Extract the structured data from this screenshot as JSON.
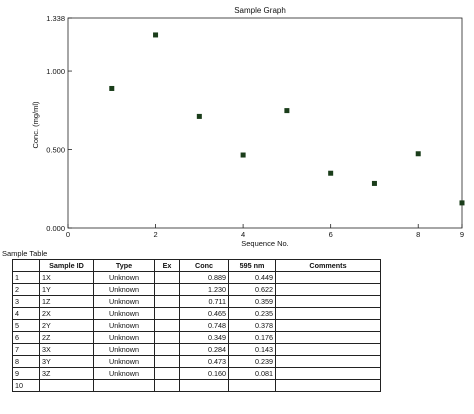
{
  "chart_data": {
    "type": "scatter",
    "title": "Sample Graph",
    "xlabel": "Sequence No.",
    "ylabel": "Conc. (mg/ml)",
    "xlim": [
      0,
      9
    ],
    "ylim": [
      0,
      1.338
    ],
    "x_ticks": [
      "0",
      "2",
      "4",
      "6",
      "8",
      "9"
    ],
    "x_tick_values": [
      0,
      2,
      4,
      6,
      8,
      9
    ],
    "y_ticks": [
      "0.000",
      "0.500",
      "1.000",
      "1.338"
    ],
    "y_tick_values": [
      0,
      0.5,
      1.0,
      1.338
    ],
    "series": [
      {
        "x": [
          1,
          2,
          3,
          4,
          5,
          6,
          7,
          8,
          9
        ],
        "y": [
          0.889,
          1.23,
          0.711,
          0.465,
          0.748,
          0.349,
          0.284,
          0.473,
          0.16
        ]
      }
    ],
    "marker_color": "#1a3d1a",
    "grid": false
  },
  "table": {
    "caption": "Sample Table",
    "headers": [
      "",
      "Sample ID",
      "Type",
      "Ex",
      "Conc",
      "595 nm",
      "Comments"
    ],
    "rows": [
      [
        "1",
        "1X",
        "Unknown",
        "",
        "0.889",
        "0.449",
        ""
      ],
      [
        "2",
        "1Y",
        "Unknown",
        "",
        "1.230",
        "0.622",
        ""
      ],
      [
        "3",
        "1Z",
        "Unknown",
        "",
        "0.711",
        "0.359",
        ""
      ],
      [
        "4",
        "2X",
        "Unknown",
        "",
        "0.465",
        "0.235",
        ""
      ],
      [
        "5",
        "2Y",
        "Unknown",
        "",
        "0.748",
        "0.378",
        ""
      ],
      [
        "6",
        "2Z",
        "Unknown",
        "",
        "0.349",
        "0.176",
        ""
      ],
      [
        "7",
        "3X",
        "Unknown",
        "",
        "0.284",
        "0.143",
        ""
      ],
      [
        "8",
        "3Y",
        "Unknown",
        "",
        "0.473",
        "0.239",
        ""
      ],
      [
        "9",
        "3Z",
        "Unknown",
        "",
        "0.160",
        "0.081",
        ""
      ],
      [
        "10",
        "",
        "",
        "",
        "",
        "",
        ""
      ]
    ]
  }
}
